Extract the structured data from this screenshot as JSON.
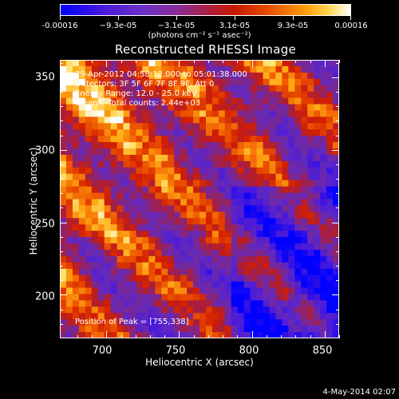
{
  "colorbar": {
    "tick_labels": [
      "-0.00016",
      "−9.3e-05",
      "−3.1e-05",
      "3.1e-05",
      "9.3e-05",
      "0.00016"
    ],
    "units": "(photons cm⁻² s⁻¹ asec⁻²)",
    "range": [
      -0.00016,
      0.00016
    ]
  },
  "title": "Reconstructed RHESSI Image",
  "info": {
    "time": "29-Apr-2012 04:58:12.000 to 05:01:38.000",
    "detectors": "Detectors: 3F 5F 6F 7F 8F 9F, Att 0",
    "energy": "Energy Range: 12.0 - 25.0 keV",
    "method": "Clean    Total counts: 2.44e+03",
    "peak": "Position of Peak = [755,338]"
  },
  "chart_data": {
    "type": "heatmap",
    "title": "Reconstructed RHESSI Image",
    "xlabel": "Heliocentric X (arcsec)",
    "ylabel": "Heliocentric Y (arcsec)",
    "xlim": [
      668,
      860
    ],
    "ylim": [
      170,
      362
    ],
    "x_ticks": [
      "700",
      "750",
      "800",
      "850"
    ],
    "y_ticks": [
      "200",
      "250",
      "300",
      "350"
    ],
    "peak_position": [
      755,
      338
    ],
    "colormap": "blue-purple-red-orange-yellow-white",
    "value_range": [
      -0.00016,
      0.00016
    ]
  },
  "footer": {
    "date": "4-May-2014 02:07"
  }
}
